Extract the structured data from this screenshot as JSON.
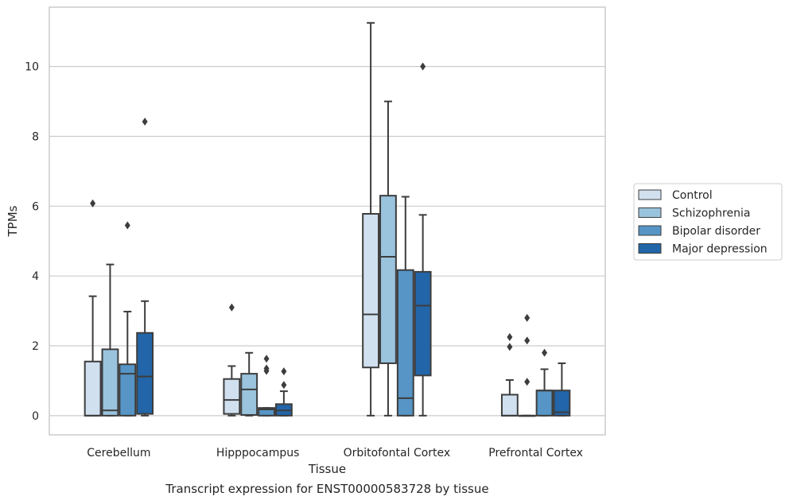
{
  "chart_data": {
    "type": "box",
    "xlabel": "Tissue",
    "ylabel": "TPMs",
    "ylim": [
      -0.55,
      11.7
    ],
    "yticks": [
      0,
      2,
      4,
      6,
      8,
      10
    ],
    "grid": "horizontal",
    "legend_placement": "right",
    "categories": [
      "Cerebellum",
      "Hipppocampus",
      "Orbitofontal Cortex",
      "Prefrontal Cortex"
    ],
    "series": [
      {
        "name": "Control",
        "color": "#d0e0ef",
        "boxes": [
          {
            "whislo": 0,
            "q1": 0,
            "med": 0,
            "q3": 1.55,
            "whishi": 3.42,
            "fliers": [
              6.08
            ]
          },
          {
            "whislo": 0,
            "q1": 0.05,
            "med": 0.45,
            "q3": 1.05,
            "whishi": 1.42,
            "fliers": [
              3.1
            ]
          },
          {
            "whislo": 0,
            "q1": 1.38,
            "med": 2.9,
            "q3": 5.78,
            "whishi": 11.25,
            "fliers": []
          },
          {
            "whislo": 0,
            "q1": 0,
            "med": 0,
            "q3": 0.6,
            "whishi": 1.02,
            "fliers": [
              1.97,
              2.25
            ]
          }
        ]
      },
      {
        "name": "Schizophrenia",
        "color": "#9ac3dd",
        "boxes": [
          {
            "whislo": 0,
            "q1": 0,
            "med": 0.15,
            "q3": 1.9,
            "whishi": 4.33,
            "fliers": []
          },
          {
            "whislo": 0,
            "q1": 0.02,
            "med": 0.75,
            "q3": 1.2,
            "whishi": 1.8,
            "fliers": []
          },
          {
            "whislo": 0,
            "q1": 1.5,
            "med": 4.55,
            "q3": 6.3,
            "whishi": 9.0,
            "fliers": []
          },
          {
            "whislo": 0,
            "q1": 0,
            "med": 0,
            "q3": 0,
            "whishi": 0,
            "fliers": [
              0.97,
              2.15,
              2.8
            ]
          }
        ]
      },
      {
        "name": "Bipolar disorder",
        "color": "#5695c6",
        "boxes": [
          {
            "whislo": 0,
            "q1": 0,
            "med": 1.2,
            "q3": 1.47,
            "whishi": 2.98,
            "fliers": [
              5.45
            ]
          },
          {
            "whislo": 0,
            "q1": 0,
            "med": 0.18,
            "q3": 0.22,
            "whishi": 0.22,
            "fliers": [
              1.28,
              1.35,
              1.63
            ]
          },
          {
            "whislo": 0,
            "q1": 0,
            "med": 0.5,
            "q3": 4.17,
            "whishi": 6.27,
            "fliers": []
          },
          {
            "whislo": 0,
            "q1": 0,
            "med": 0.72,
            "q3": 0.72,
            "whishi": 1.33,
            "fliers": [
              1.8
            ]
          }
        ]
      },
      {
        "name": "Major depression",
        "color": "#2265a8",
        "boxes": [
          {
            "whislo": 0,
            "q1": 0.05,
            "med": 1.12,
            "q3": 2.37,
            "whishi": 3.28,
            "fliers": [
              8.42
            ]
          },
          {
            "whislo": 0,
            "q1": 0,
            "med": 0.15,
            "q3": 0.33,
            "whishi": 0.7,
            "fliers": [
              0.88,
              1.27
            ]
          },
          {
            "whislo": 0,
            "q1": 1.15,
            "med": 3.15,
            "q3": 4.12,
            "whishi": 5.75,
            "fliers": [
              10.0
            ]
          },
          {
            "whislo": 0,
            "q1": 0,
            "med": 0.1,
            "q3": 0.72,
            "whishi": 1.5,
            "fliers": []
          }
        ]
      }
    ]
  },
  "caption": "Transcript expression for ENST00000583728 by tissue"
}
